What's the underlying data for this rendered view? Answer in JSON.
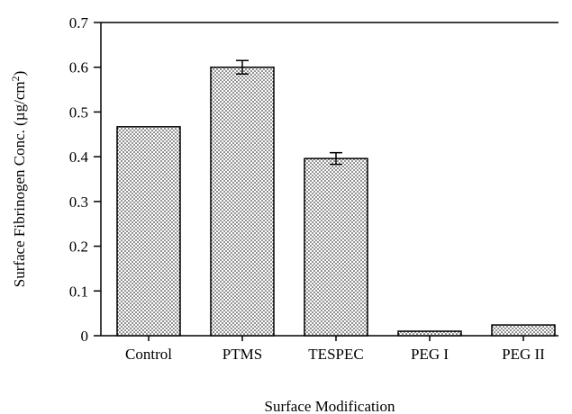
{
  "chart_data": {
    "type": "bar",
    "categories": [
      "Control",
      "PTMS",
      "TESPEC",
      "PEG I",
      "PEG II"
    ],
    "values": [
      0.467,
      0.6,
      0.396,
      0.01,
      0.024
    ],
    "error": [
      null,
      0.015,
      0.013,
      null,
      null
    ],
    "title": "",
    "xlabel": "Surface Modification",
    "ylabel_main": "Surface Fibrinogen Conc. (µg/cm",
    "ylabel_sup": "2",
    "ylabel_close": ")",
    "ylim": [
      0,
      0.7
    ],
    "yticks": [
      "0",
      "0.1",
      "0.2",
      "0.3",
      "0.4",
      "0.5",
      "0.6",
      "0.7"
    ],
    "grid": false,
    "bar_fill": "dotted pattern"
  }
}
